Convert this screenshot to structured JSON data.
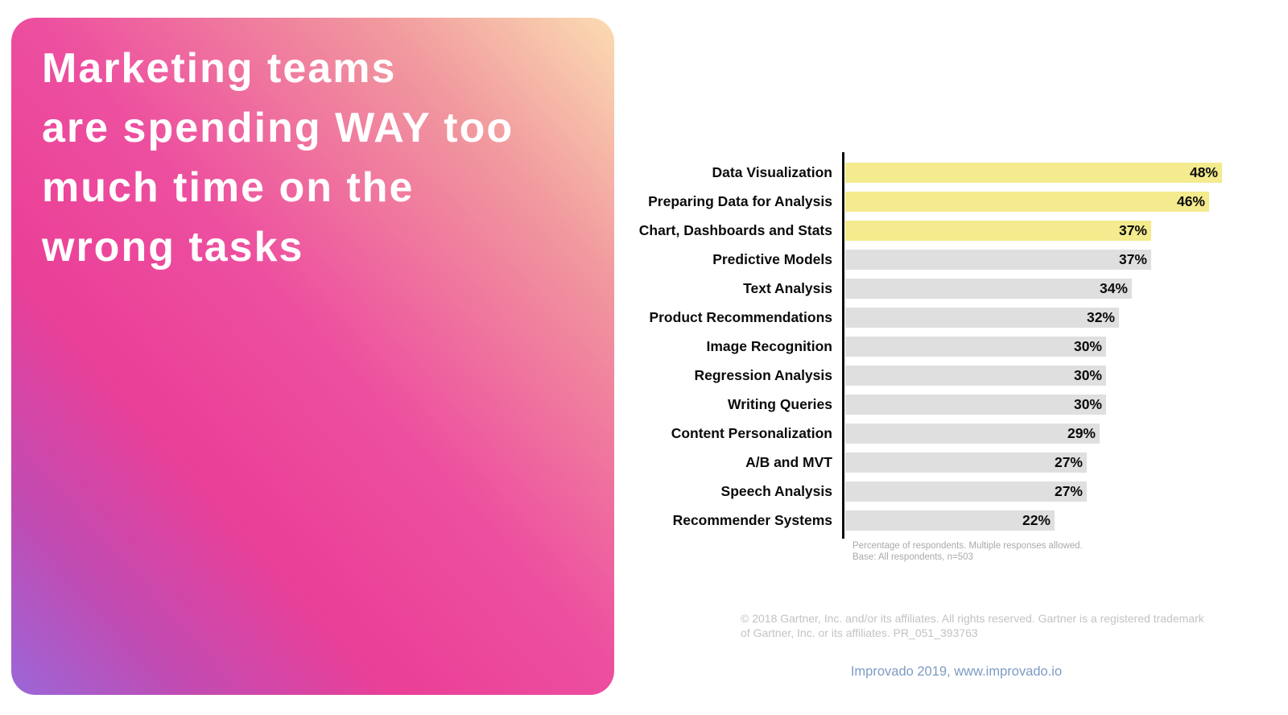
{
  "card": {
    "title": "Marketing teams\nare spending WAY too\nmuch time on the\nwrong tasks",
    "gradient": {
      "top_right": "#fbdcb2",
      "middle": "#ed4f9f",
      "bottom_right": "#ea3f97",
      "bottom_left": "#9b67d8"
    },
    "text_color": "#ffffff"
  },
  "chart_data": {
    "type": "bar",
    "orientation": "horizontal",
    "title": "",
    "xlabel": "",
    "ylabel": "",
    "legend": "none",
    "grid": false,
    "categories": [
      "Data Visualization",
      "Preparing Data for Analysis",
      "Chart, Dashboards and Stats",
      "Predictive Models",
      "Text Analysis",
      "Product Recommendations",
      "Image Recognition",
      "Regression Analysis",
      "Writing Queries",
      "Content Personalization",
      "A/B and MVT",
      "Speech Analysis",
      "Recommender Systems"
    ],
    "values": [
      48,
      46,
      37,
      37,
      34,
      32,
      30,
      30,
      30,
      29,
      27,
      27,
      22
    ],
    "value_suffix": "%",
    "highlighted_count": 3,
    "highlight_color": "#F4EA8E",
    "bar_color": "#DFDFDF",
    "axis_color": "#0c0c0c",
    "footnote_line1": "Percentage of respondents. Multiple responses allowed.",
    "footnote_line2": "Base: All respondents, n=503"
  },
  "footer": {
    "gartner_notice": "© 2018 Gartner, Inc. and/or its affiliates. All rights reserved. Gartner is a registered trademark\nof Gartner, Inc. or its affiliates. PR_051_393763",
    "attribution": "Improvado 2019, www.improvado.io",
    "attribution_color": "#7d9bc4"
  }
}
